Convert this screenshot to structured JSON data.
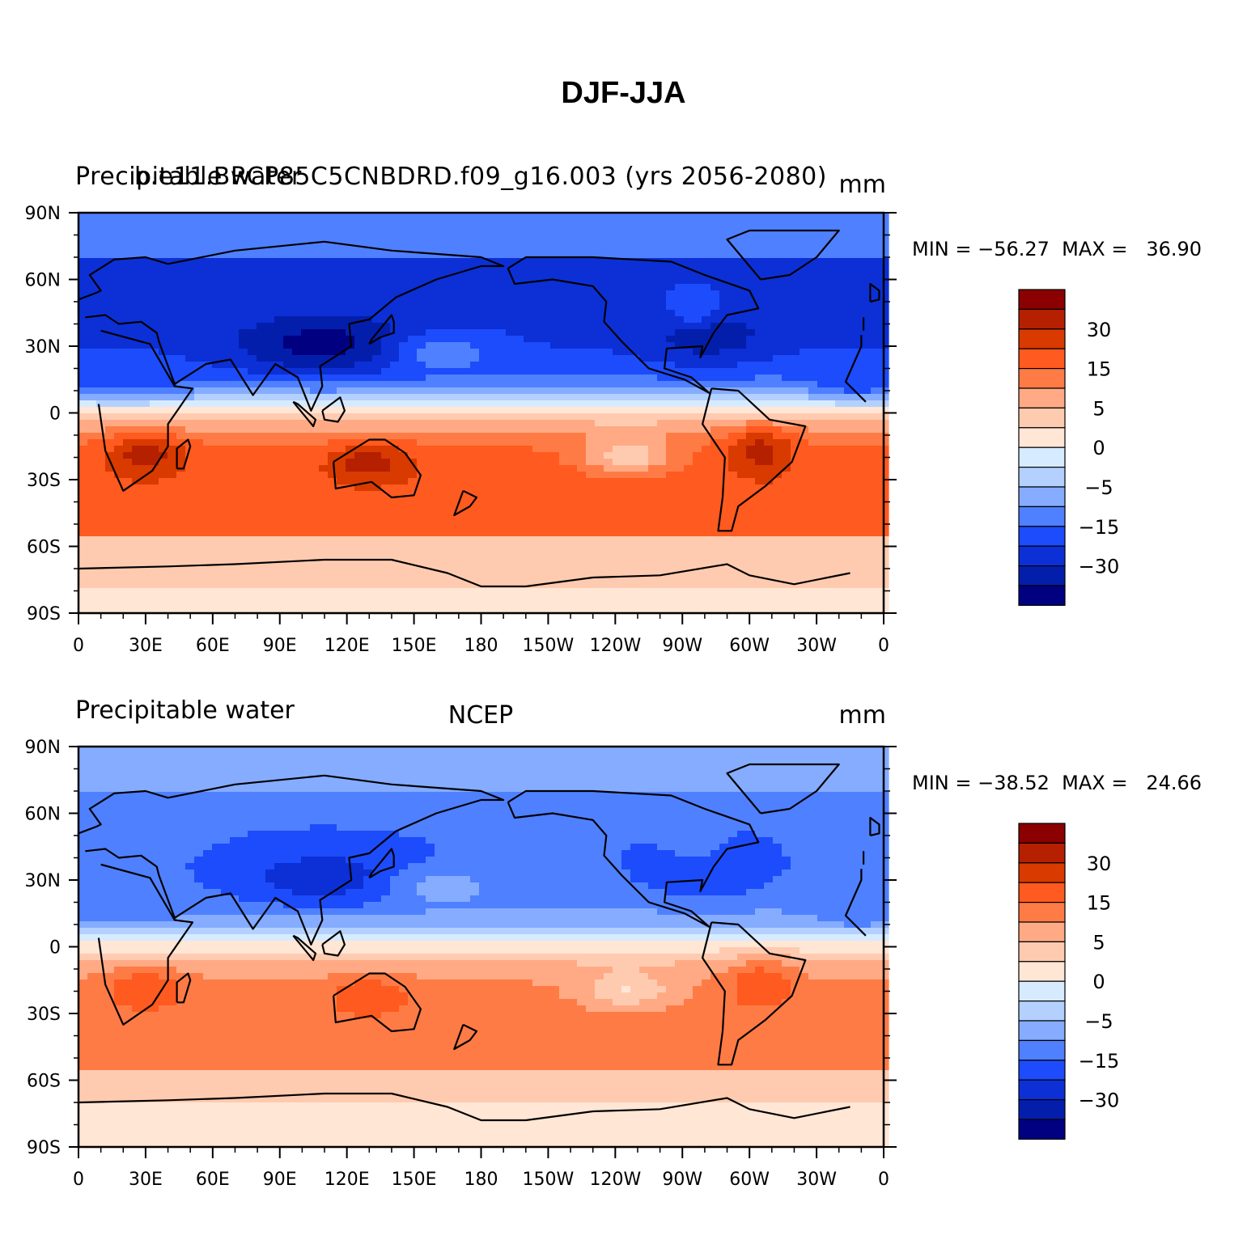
{
  "title": "DJF-JJA",
  "panels": [
    {
      "id": "top",
      "left_label": "Precipitable water",
      "center_label": "b.e11.BRCP85C5CNBDRD.f09_g16.003 (yrs 2056-2080)",
      "right_label": "mm",
      "min_max": "MIN = −56.27  MAX =   36.90"
    },
    {
      "id": "bottom",
      "left_label": "Precipitable water",
      "center_label": "NCEP",
      "right_label": "mm",
      "min_max": "MIN = −38.52  MAX =   24.66"
    }
  ],
  "axes": {
    "lat_ticks": [
      "90N",
      "60N",
      "30N",
      "0",
      "30S",
      "60S",
      "90S"
    ],
    "lon_ticks": [
      "0",
      "30E",
      "60E",
      "90E",
      "120E",
      "150E",
      "180",
      "150W",
      "120W",
      "90W",
      "60W",
      "30W",
      "0"
    ]
  },
  "colorbar": {
    "labels": [
      "30",
      "15",
      "5",
      "0",
      "−5",
      "−15",
      "−30"
    ],
    "colors": [
      "#8b0000",
      "#b42000",
      "#d93a00",
      "#ff5a1f",
      "#ff7b45",
      "#ffaa85",
      "#ffcbb0",
      "#ffe6d5",
      "#d6ebff",
      "#b3d0ff",
      "#85acff",
      "#4f80ff",
      "#1c4cfb",
      "#0c30d6",
      "#041eac",
      "#000080"
    ]
  },
  "colors": {
    "land_outline": "#000000",
    "frame": "#000000"
  }
}
